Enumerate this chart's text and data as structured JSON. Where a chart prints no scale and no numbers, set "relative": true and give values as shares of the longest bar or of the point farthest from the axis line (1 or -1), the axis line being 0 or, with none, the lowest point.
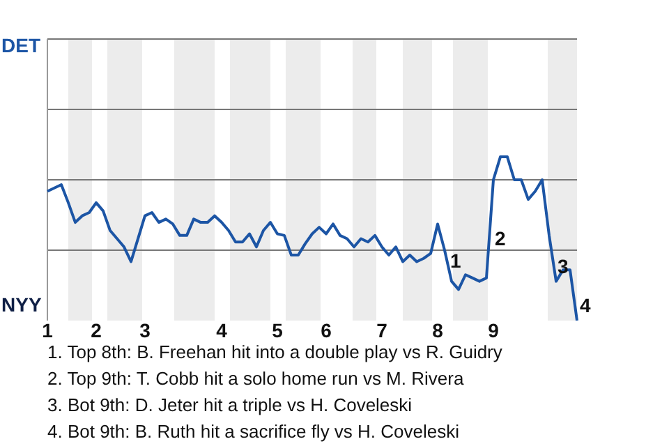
{
  "chart_data": {
    "type": "line",
    "relative": true,
    "categories": [
      "1",
      null,
      null,
      null,
      null,
      null,
      null,
      "2",
      null,
      null,
      null,
      null,
      null,
      null,
      "3",
      null,
      null,
      null,
      null,
      null,
      null,
      null,
      null,
      null,
      null,
      "4",
      null,
      null,
      null,
      null,
      null,
      null,
      null,
      "5",
      null,
      null,
      null,
      null,
      null,
      null,
      "6",
      null,
      null,
      null,
      null,
      null,
      null,
      null,
      "7",
      null,
      null,
      null,
      null,
      null,
      null,
      null,
      "8",
      null,
      null,
      null,
      null,
      null,
      null,
      null,
      "9",
      null,
      null,
      null,
      null,
      null,
      null,
      null,
      null,
      null,
      null,
      null,
      null
    ],
    "line_style": "solid",
    "ref_lines": [
      {
        "axis": "y",
        "value": 0.43,
        "color": "#777777"
      },
      {
        "axis": "y",
        "value": 0.86,
        "color": "#777777"
      },
      {
        "axis": "y",
        "value": 1.29,
        "color": "#777777"
      },
      {
        "axis": "y",
        "value": 1.72,
        "color": "#777777"
      }
    ],
    "series": [
      {
        "color": "#1c55a5",
        "values": [
          0.79,
          0.81,
          0.83,
          0.72,
          0.6,
          0.64,
          0.66,
          0.72,
          0.67,
          0.55,
          0.5,
          0.45,
          0.36,
          0.5,
          0.64,
          0.66,
          0.6,
          0.62,
          0.59,
          0.52,
          0.52,
          0.62,
          0.6,
          0.6,
          0.64,
          0.6,
          0.55,
          0.48,
          0.48,
          0.53,
          0.45,
          0.55,
          0.6,
          0.53,
          0.52,
          0.4,
          0.4,
          0.47,
          0.53,
          0.57,
          0.53,
          0.59,
          0.52,
          0.5,
          0.45,
          0.5,
          0.48,
          0.52,
          0.45,
          0.4,
          0.45,
          0.36,
          0.4,
          0.36,
          0.38,
          0.41,
          0.59,
          0.43,
          0.24,
          0.19,
          0.28,
          0.26,
          0.24,
          0.26,
          0.86,
          1,
          1,
          0.86,
          0.86,
          0.74,
          0.79,
          0.86,
          0.52,
          0.24,
          0.31,
          0.31,
          0
        ]
      }
    ],
    "annotations": [
      "DET",
      "NYY",
      "1",
      "2",
      "3",
      "4",
      "1. Top 8th: B. Freehan hit into a double play vs R. Guidry",
      "2. Top 9th: T. Cobb hit a solo home run vs M. Rivera",
      "3. Bot 9th: D. Jeter hit a triple vs H. Coveleski",
      "4. Bot 9th: B. Ruth hit a sacrifice fly vs H. Coveleski"
    ]
  }
}
